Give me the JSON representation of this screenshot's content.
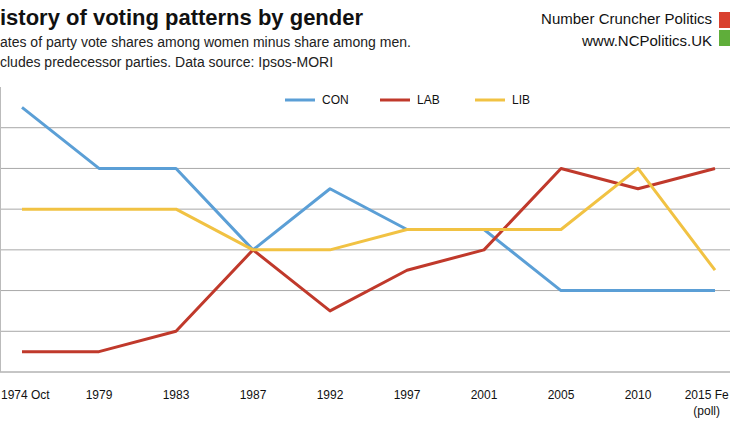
{
  "chart_data": {
    "type": "line",
    "title": "istory of voting patterns by gender",
    "subtitle": [
      "ates of party vote shares among women minus share among men.",
      "cludes predecessor parties. Data source: Ipsos-MORI"
    ],
    "annotations": [
      "Number Cruncher Politics",
      "www.NCPolitics.UK"
    ],
    "categories": [
      "1974 Oct",
      "1979",
      "1983",
      "1987",
      "1992",
      "1997",
      "2001",
      "2005",
      "2010",
      "2015 Fe\n(poll)"
    ],
    "series": [
      {
        "name": "CON",
        "color": "#5b9fd6",
        "values": [
          7,
          4,
          4,
          0,
          3,
          1,
          1,
          -2,
          -2,
          -2
        ]
      },
      {
        "name": "LAB",
        "color": "#c0392b",
        "values": [
          -5,
          -5,
          -4,
          0,
          -3,
          -1,
          0,
          4,
          3,
          4
        ]
      },
      {
        "name": "LIB",
        "color": "#f1c243",
        "values": [
          2,
          2,
          2,
          0,
          0,
          1,
          1,
          1,
          4,
          -1
        ]
      }
    ],
    "ylim": [
      -6,
      8
    ],
    "yticks": [
      -6,
      -4,
      -2,
      0,
      2,
      4,
      6
    ],
    "grid": true,
    "legend": "top",
    "tick_labels": "x"
  }
}
